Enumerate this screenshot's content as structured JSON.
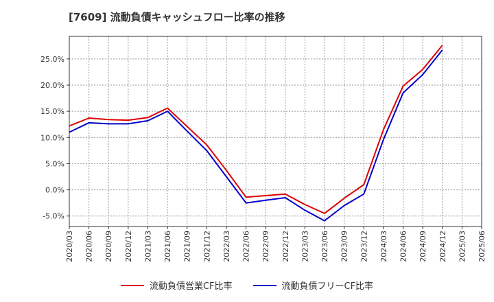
{
  "chart_data": {
    "type": "line",
    "title": "[7609]  流動負債キャッシュフロー比率の推移",
    "x": [
      "2020/03",
      "2020/06",
      "2020/09",
      "2020/12",
      "2021/03",
      "2021/06",
      "2021/09",
      "2021/12",
      "2022/03",
      "2022/06",
      "2022/09",
      "2022/12",
      "2023/03",
      "2023/06",
      "2023/09",
      "2023/12",
      "2024/03",
      "2024/06",
      "2024/09",
      "2024/12",
      "2025/03",
      "2025/06"
    ],
    "y_ticks": [
      25.0,
      20.0,
      15.0,
      10.0,
      5.0,
      0.0,
      -5.0
    ],
    "y_tick_labels": [
      "25.0%",
      "20.0%",
      "15.0%",
      "10.0%",
      "5.0%",
      "0.0%",
      "-5.0%"
    ],
    "ylim": [
      -7.0,
      29.3
    ],
    "series": [
      {
        "name": "流動負債営業CF比率",
        "color": "#dd0000",
        "values": [
          12.2,
          13.7,
          13.4,
          13.3,
          13.8,
          15.6,
          12.1,
          8.6,
          3.7,
          -1.4,
          -1.1,
          -0.8,
          -2.8,
          -4.5,
          -1.6,
          1.0,
          11.5,
          19.8,
          23.0,
          27.6,
          null,
          null
        ]
      },
      {
        "name": "流動負債フリーCF比率",
        "color": "#0000cc",
        "values": [
          11.0,
          12.8,
          12.6,
          12.6,
          13.2,
          15.0,
          11.2,
          7.5,
          2.5,
          -2.5,
          -2.0,
          -1.5,
          -3.9,
          -5.9,
          -3.0,
          -0.8,
          9.6,
          18.5,
          22.0,
          26.7,
          null,
          null
        ]
      }
    ]
  }
}
